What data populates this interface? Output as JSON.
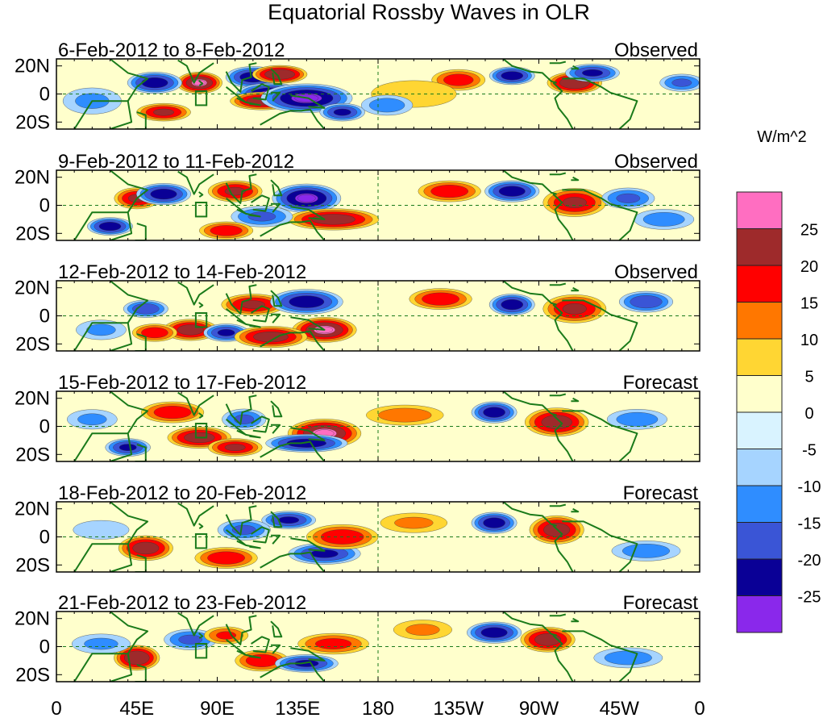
{
  "chart_data": {
    "type": "heatmap",
    "title": "Equatorial Rossby Waves in OLR",
    "units": "W/m^2",
    "x_ticks": [
      "0",
      "45E",
      "90E",
      "135E",
      "180",
      "135W",
      "90W",
      "45W",
      "0"
    ],
    "y_ticks": [
      "20N",
      "0",
      "20S"
    ],
    "xlim": [
      0,
      360
    ],
    "ylim": [
      -25,
      25
    ],
    "colorbar": {
      "labels": [
        "25",
        "20",
        "15",
        "10",
        "5",
        "0",
        "-5",
        "-10",
        "-15",
        "-20",
        "-25"
      ],
      "colors": [
        "#ff6ec1",
        "#9e2a2b",
        "#ff0000",
        "#ff7700",
        "#ffd633",
        "#ffffcc",
        "#d9f3ff",
        "#a6d4ff",
        "#2f8dff",
        "#3a55d6",
        "#0a0096",
        "#8a28eb"
      ]
    },
    "land_color": "#1a7a1a",
    "panels": [
      {
        "period": "6-Feb-2012 to 8-Feb-2012",
        "status": "Observed",
        "features": [
          [
            80,
            8,
            10,
            6,
            25
          ],
          [
            60,
            -13,
            12,
            5,
            20
          ],
          [
            110,
            12,
            12,
            6,
            -22
          ],
          [
            120,
            0,
            15,
            6,
            -25
          ],
          [
            115,
            -5,
            14,
            5,
            22
          ],
          [
            140,
            -3,
            20,
            8,
            -25
          ],
          [
            125,
            14,
            12,
            5,
            24
          ],
          [
            160,
            -13,
            10,
            5,
            -20
          ],
          [
            55,
            8,
            12,
            6,
            -22
          ],
          [
            225,
            10,
            12,
            6,
            17
          ],
          [
            255,
            13,
            10,
            5,
            -22
          ],
          [
            290,
            8,
            12,
            6,
            24
          ],
          [
            200,
            0,
            25,
            10,
            5
          ],
          [
            300,
            15,
            12,
            5,
            -20
          ],
          [
            20,
            -5,
            14,
            8,
            -10
          ],
          [
            185,
            -8,
            12,
            6,
            -12
          ],
          [
            350,
            8,
            10,
            5,
            -15
          ]
        ]
      },
      {
        "period": "9-Feb-2012 to 11-Feb-2012",
        "status": "Observed",
        "features": [
          [
            45,
            5,
            10,
            6,
            20
          ],
          [
            30,
            -15,
            10,
            5,
            -22
          ],
          [
            60,
            8,
            12,
            6,
            -22
          ],
          [
            100,
            10,
            12,
            6,
            20
          ],
          [
            140,
            5,
            15,
            8,
            -25
          ],
          [
            155,
            -10,
            20,
            6,
            22
          ],
          [
            115,
            -8,
            14,
            6,
            -15
          ],
          [
            220,
            10,
            14,
            6,
            18
          ],
          [
            255,
            10,
            12,
            6,
            -22
          ],
          [
            290,
            2,
            14,
            8,
            20
          ],
          [
            320,
            5,
            12,
            6,
            -15
          ],
          [
            340,
            -10,
            14,
            6,
            -12
          ],
          [
            95,
            -18,
            12,
            5,
            18
          ]
        ]
      },
      {
        "period": "12-Feb-2012 to 14-Feb-2012",
        "status": "Observed",
        "features": [
          [
            50,
            5,
            10,
            5,
            -18
          ],
          [
            110,
            8,
            14,
            6,
            20
          ],
          [
            140,
            10,
            16,
            7,
            -22
          ],
          [
            150,
            -10,
            14,
            7,
            25
          ],
          [
            75,
            -10,
            12,
            6,
            22
          ],
          [
            95,
            -12,
            10,
            5,
            -20
          ],
          [
            55,
            -12,
            10,
            5,
            18
          ],
          [
            120,
            -15,
            16,
            6,
            22
          ],
          [
            215,
            12,
            14,
            6,
            18
          ],
          [
            255,
            8,
            10,
            6,
            -22
          ],
          [
            290,
            5,
            14,
            8,
            20
          ],
          [
            330,
            10,
            12,
            6,
            -18
          ],
          [
            25,
            -10,
            12,
            6,
            -10
          ]
        ]
      },
      {
        "period": "15-Feb-2012 to 17-Feb-2012",
        "status": "Forecast",
        "features": [
          [
            65,
            10,
            14,
            6,
            18
          ],
          [
            105,
            5,
            10,
            6,
            -15
          ],
          [
            150,
            -5,
            16,
            8,
            25
          ],
          [
            140,
            -12,
            18,
            5,
            -22
          ],
          [
            80,
            -8,
            14,
            6,
            22
          ],
          [
            100,
            -15,
            12,
            5,
            20
          ],
          [
            40,
            -15,
            10,
            5,
            -20
          ],
          [
            245,
            10,
            10,
            6,
            -22
          ],
          [
            280,
            3,
            14,
            8,
            22
          ],
          [
            325,
            5,
            14,
            6,
            -12
          ],
          [
            195,
            8,
            18,
            6,
            12
          ],
          [
            20,
            5,
            12,
            6,
            -10
          ]
        ]
      },
      {
        "period": "18-Feb-2012 to 20-Feb-2012",
        "status": "Forecast",
        "features": [
          [
            50,
            -8,
            12,
            7,
            22
          ],
          [
            95,
            -15,
            14,
            6,
            18
          ],
          [
            130,
            12,
            12,
            5,
            -20
          ],
          [
            150,
            -12,
            16,
            6,
            -20
          ],
          [
            160,
            0,
            16,
            7,
            18
          ],
          [
            105,
            5,
            12,
            6,
            -15
          ],
          [
            245,
            10,
            10,
            6,
            -22
          ],
          [
            280,
            5,
            12,
            8,
            22
          ],
          [
            330,
            -10,
            16,
            6,
            -12
          ],
          [
            25,
            5,
            14,
            6,
            -8
          ],
          [
            200,
            10,
            16,
            6,
            10
          ]
        ]
      },
      {
        "period": "21-Feb-2012 to 23-Feb-2012",
        "status": "Forecast",
        "features": [
          [
            45,
            -8,
            10,
            7,
            24
          ],
          [
            75,
            5,
            12,
            6,
            -15
          ],
          [
            115,
            -10,
            12,
            6,
            18
          ],
          [
            140,
            -12,
            14,
            5,
            -20
          ],
          [
            155,
            2,
            16,
            6,
            16
          ],
          [
            95,
            8,
            10,
            5,
            15
          ],
          [
            245,
            10,
            12,
            6,
            -22
          ],
          [
            275,
            5,
            12,
            7,
            22
          ],
          [
            320,
            -8,
            16,
            6,
            -12
          ],
          [
            205,
            12,
            14,
            6,
            10
          ],
          [
            25,
            2,
            14,
            6,
            -10
          ]
        ]
      }
    ]
  }
}
